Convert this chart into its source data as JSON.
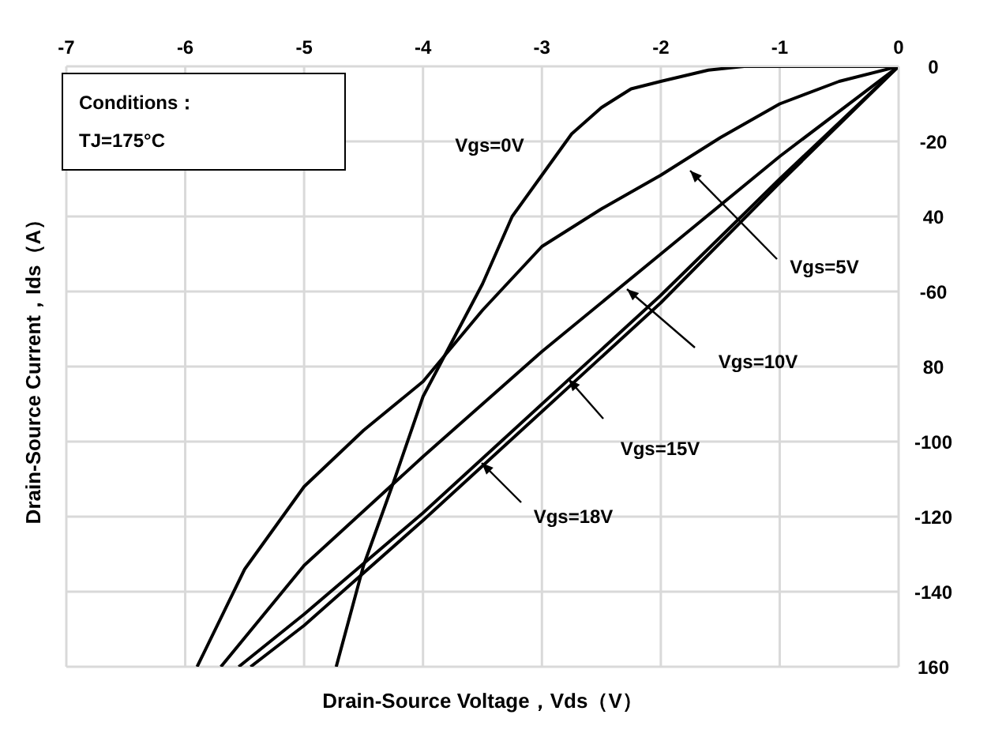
{
  "chart_data": {
    "type": "line",
    "xlabel": "Drain-Source Voltage，Vds（V）",
    "ylabel": "Drain-Source Current，Ids（A）",
    "annotations": [
      "Conditions：",
      "TJ=175°C"
    ],
    "xlim": [
      -7,
      0
    ],
    "xticks": [
      -7,
      -6,
      -5,
      -4,
      -3,
      -2,
      -1,
      0
    ],
    "ylim": [
      -160,
      0
    ],
    "yticks": [
      0,
      -20,
      {
        "value": -40,
        "label": "40"
      },
      -60,
      {
        "value": -80,
        "label": "80"
      },
      -100,
      -120,
      -140,
      {
        "value": -160,
        "label": "160"
      }
    ],
    "grid": true,
    "legend": false,
    "marker": "none",
    "line_style": "solid",
    "series": [
      {
        "name": "Vgs=0V",
        "color": "#000000",
        "x": [
          0,
          -1,
          -1.3,
          -1.6,
          -2,
          -2.25,
          -2.5,
          -2.75,
          -3,
          -3.25,
          -3.5,
          -3.75,
          -4,
          -4.25,
          -4.5,
          -4.73
        ],
        "values": [
          0,
          0,
          0,
          -1,
          -4,
          -6,
          -11,
          -18,
          -29,
          -40,
          -58,
          -73,
          -88,
          -111,
          -133,
          -160
        ]
      },
      {
        "name": "Vgs=5V",
        "color": "#000000",
        "x": [
          0,
          -0.5,
          -1,
          -1.5,
          -2,
          -2.5,
          -3,
          -3.5,
          -4,
          -4.5,
          -5,
          -5.5,
          -5.9
        ],
        "values": [
          0,
          -4,
          -10,
          -19,
          -29,
          -38,
          -48,
          -65,
          -84,
          -97,
          -112,
          -134,
          -160
        ]
      },
      {
        "name": "Vgs=10V",
        "color": "#000000",
        "x": [
          0,
          -1,
          -2,
          -3,
          -4,
          -5,
          -5.7
        ],
        "values": [
          0,
          -24,
          -50,
          -76,
          -104,
          -133,
          -160
        ]
      },
      {
        "name": "Vgs=15V",
        "color": "#000000",
        "x": [
          0,
          -1,
          -2,
          -3,
          -4,
          -5,
          -5.55
        ],
        "values": [
          0,
          -30,
          -61,
          -90,
          -119,
          -146,
          -160
        ]
      },
      {
        "name": "Vgs=18V",
        "color": "#000000",
        "x": [
          0,
          -1,
          -2,
          -3,
          -4,
          -5,
          -5.45
        ],
        "values": [
          0,
          -31,
          -63,
          -92,
          -121,
          -149,
          -160
        ]
      }
    ]
  }
}
